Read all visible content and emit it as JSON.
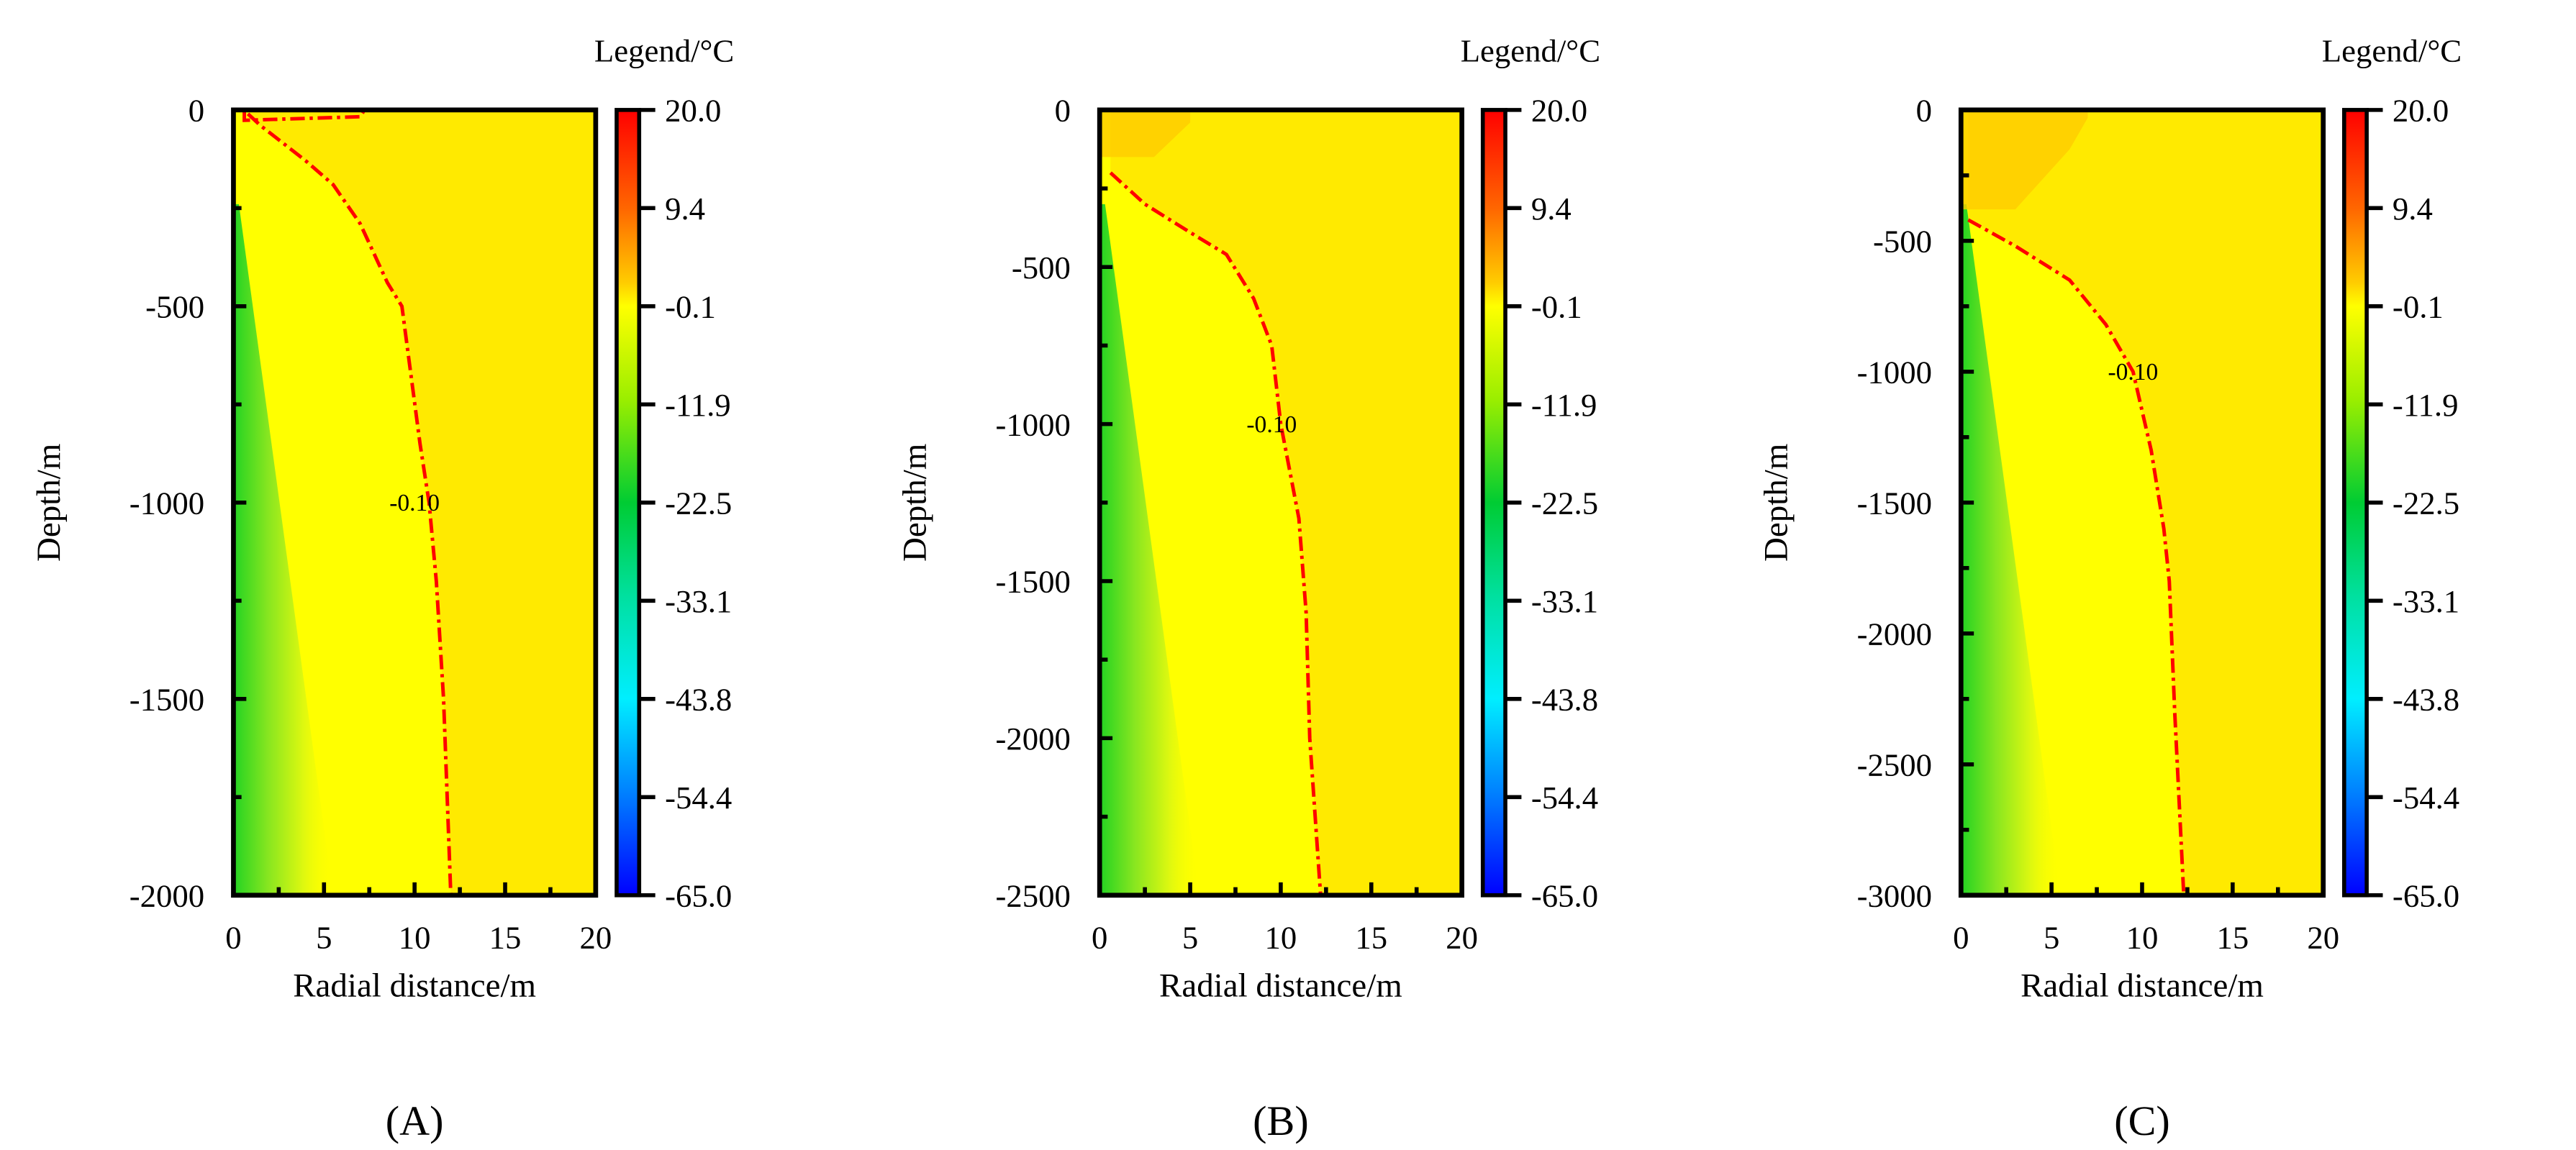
{
  "chart_data": [
    {
      "type": "heatmap",
      "panel_label": "(A)",
      "xlabel": "Radial distance/m",
      "ylabel": "Depth/m",
      "xlim": [
        0,
        20
      ],
      "ylim": [
        -2000,
        0
      ],
      "xticks": [
        "0",
        "5",
        "10",
        "15",
        "20"
      ],
      "xtick_values": [
        0,
        5,
        10,
        15,
        20
      ],
      "yticks": [
        "0",
        "-500",
        "-1000",
        "-1500",
        "-2000"
      ],
      "ytick_values": [
        0,
        -500,
        -1000,
        -1500,
        -2000
      ],
      "contour": {
        "label": "-0.10",
        "label_at": [
          10,
          -1000
        ],
        "points": [
          [
            0.8,
            -10
          ],
          [
            1.5,
            -40
          ],
          [
            4,
            -130
          ],
          [
            5.5,
            -190
          ],
          [
            7,
            -290
          ],
          [
            8.5,
            -440
          ],
          [
            9.3,
            -500
          ],
          [
            10.3,
            -850
          ],
          [
            10.8,
            -1000
          ],
          [
            11.2,
            -1200
          ],
          [
            11.6,
            -1500
          ],
          [
            12,
            -2000
          ]
        ],
        "top_patch": [
          [
            0.6,
            -10
          ],
          [
            7,
            -5
          ]
        ]
      },
      "warm_zone": null,
      "green_width_top": 0.3,
      "green_width_bottom": 5.5
    },
    {
      "type": "heatmap",
      "panel_label": "(B)",
      "xlabel": "Radial distance/m",
      "ylabel": "Depth/m",
      "xlim": [
        0,
        20
      ],
      "ylim": [
        -2500,
        0
      ],
      "xticks": [
        "0",
        "5",
        "10",
        "15",
        "20"
      ],
      "xtick_values": [
        0,
        5,
        10,
        15,
        20
      ],
      "yticks": [
        "0",
        "-500",
        "-1000",
        "-1500",
        "-2000",
        "-2500"
      ],
      "ytick_values": [
        0,
        -500,
        -1000,
        -1500,
        -2000,
        -2500
      ],
      "contour": {
        "label": "-0.10",
        "label_at": [
          9.5,
          -1000
        ],
        "points": [
          [
            0.6,
            -200
          ],
          [
            2.5,
            -300
          ],
          [
            5,
            -390
          ],
          [
            7,
            -460
          ],
          [
            8.5,
            -600
          ],
          [
            9.5,
            -750
          ],
          [
            10,
            -1000
          ],
          [
            11,
            -1300
          ],
          [
            11.4,
            -1600
          ],
          [
            11.6,
            -2000
          ],
          [
            12.2,
            -2500
          ]
        ]
      },
      "warm_zone": [
        [
          0,
          -150
        ],
        [
          3,
          -150
        ],
        [
          5,
          -40
        ],
        [
          5,
          0
        ]
      ],
      "green_width_top": 0.3,
      "green_width_bottom": 5.5
    },
    {
      "type": "heatmap",
      "panel_label": "(C)",
      "xlabel": "Radial distance/m",
      "ylabel": "Depth/m",
      "xlim": [
        0,
        20
      ],
      "ylim": [
        -3000,
        0
      ],
      "xticks": [
        "0",
        "5",
        "10",
        "15",
        "20"
      ],
      "xtick_values": [
        0,
        5,
        10,
        15,
        20
      ],
      "yticks": [
        "0",
        "-500",
        "-1000",
        "-1500",
        "-2000",
        "-2500",
        "-3000"
      ],
      "ytick_values": [
        0,
        -500,
        -1000,
        -1500,
        -2000,
        -2500,
        -3000
      ],
      "contour": {
        "label": "-0.10",
        "label_at": [
          9.5,
          -1000
        ],
        "points": [
          [
            0.4,
            -420
          ],
          [
            3,
            -520
          ],
          [
            6,
            -650
          ],
          [
            8,
            -820
          ],
          [
            9.5,
            -1000
          ],
          [
            10.5,
            -1300
          ],
          [
            11.2,
            -1600
          ],
          [
            11.5,
            -1800
          ],
          [
            11.8,
            -2300
          ],
          [
            12.3,
            -3000
          ]
        ]
      },
      "warm_zone": [
        [
          0,
          -380
        ],
        [
          3,
          -380
        ],
        [
          6,
          -150
        ],
        [
          7,
          -30
        ],
        [
          7,
          0
        ]
      ],
      "green_width_top": 0.3,
      "green_width_bottom": 5.5
    }
  ],
  "legend": {
    "title": "Legend/°C",
    "ticks": [
      "20.0",
      "9.4",
      "-0.1",
      "-11.9",
      "-22.5",
      "-33.1",
      "-43.8",
      "-54.4",
      "-65.0"
    ],
    "range": [
      -65.0,
      20.0
    ]
  },
  "colors": {
    "field_yellow": "#FFFF00",
    "field_far": "#FFEA00",
    "warm": "#FFCC00",
    "green": "#22D322",
    "contour": "#FF0000"
  }
}
